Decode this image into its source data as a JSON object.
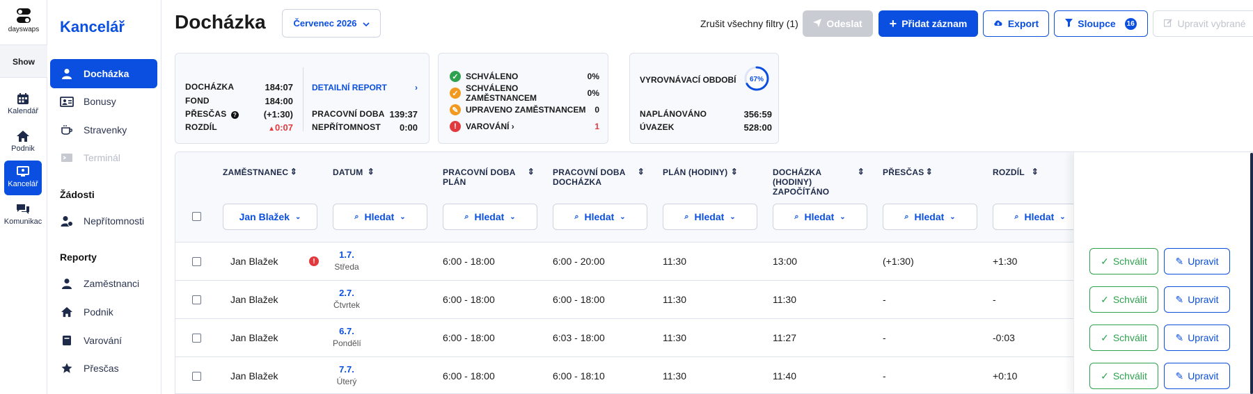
{
  "brand": {
    "name": "dayswaps"
  },
  "rail": {
    "show_label": "Show",
    "items": [
      {
        "label": "Kalendář",
        "icon": "calendar-icon"
      },
      {
        "label": "Podnik",
        "icon": "home-icon"
      },
      {
        "label": "Kancelář",
        "icon": "office-icon",
        "active": true
      },
      {
        "label": "Komunikac",
        "icon": "chat-icon"
      }
    ]
  },
  "sidebar": {
    "title": "Kancelář",
    "items": [
      {
        "label": "Docházka",
        "icon": "user-icon",
        "active": true
      },
      {
        "label": "Bonusy",
        "icon": "bonus-icon"
      },
      {
        "label": "Stravenky",
        "icon": "coffee-icon"
      },
      {
        "label": "Terminál",
        "icon": "terminal-icon",
        "disabled": true
      }
    ],
    "section_requests": "Žádosti",
    "request_items": [
      {
        "label": "Nepřítomnosti",
        "icon": "user-absence-icon"
      }
    ],
    "section_reports": "Reporty",
    "report_items": [
      {
        "label": "Zaměstnanci",
        "icon": "user-icon"
      },
      {
        "label": "Podnik",
        "icon": "home-icon"
      },
      {
        "label": "Varování",
        "icon": "book-icon"
      },
      {
        "label": "Přesčas",
        "icon": "star-icon"
      }
    ]
  },
  "header": {
    "title": "Docházka",
    "month": "Červenec 2026",
    "clear_filters": "Zrušit všechny filtry (1)",
    "send": "Odeslat",
    "add": "Přidat záznam",
    "export": "Export",
    "columns": "Sloupce",
    "columns_count": "16",
    "edit_selected": "Upravit vybrané"
  },
  "summary": {
    "attendance_label": "DOCHÁZKA",
    "attendance": "184:07",
    "fund_label": "FOND",
    "fund": "184:00",
    "overtime_label": "PŘESČAS",
    "overtime": "(+1:30)",
    "diff_label": "ROZDÍL",
    "diff": "0:07",
    "report_link": "DETAILNÍ REPORT",
    "work_time_label": "PRACOVNÍ DOBA",
    "work_time": "139:37",
    "absence_label": "NEPŘÍTOMNOST",
    "absence": "0:00"
  },
  "status": {
    "approved_label": "SCHVÁLENO",
    "approved": "0%",
    "approved_emp_label": "SCHVÁLENO ZAMĚSTNANCEM",
    "approved_emp": "0%",
    "edited_emp_label": "UPRAVENO ZAMĚSTNANCEM",
    "edited_emp": "0",
    "warnings_label": "VAROVÁNÍ",
    "warnings": "1",
    "colors": {
      "approved": "#2ea24f",
      "approved_emp": "#f29a1f",
      "warning": "#e0393e"
    }
  },
  "balance": {
    "period_label": "VYROVNÁVACÍ OBDOBÍ",
    "period_progress": "67%",
    "period_fraction": 0.67,
    "planned_label": "NAPLÁNOVÁNO",
    "planned": "356:59",
    "contract_label": "ÚVAZEK",
    "contract": "528:00"
  },
  "table": {
    "columns": [
      "ZAMĚSTNANEC",
      "DATUM",
      "PRACOVNÍ DOBA PLÁN",
      "PRACOVNÍ DOBA DOCHÁZKA",
      "PLÁN (HODINY)",
      "DOCHÁZKA (HODINY) ZAPOČÍTÁNO",
      "PŘESČAS",
      "ROZDÍL"
    ],
    "employee_filter": "Jan Blažek",
    "search_filter": "Hledat",
    "approve_label": "Schválit",
    "edit_label": "Upravit",
    "rows": [
      {
        "name": "Jan Blažek",
        "warning": true,
        "date": "1.7.",
        "weekday": "Středa",
        "plan": "6:00 - 18:00",
        "actual": "6:00 - 20:00",
        "plan_hours": "11:30",
        "counted": "13:00",
        "overtime": "(+1:30)",
        "diff": "+1:30"
      },
      {
        "name": "Jan Blažek",
        "warning": false,
        "date": "2.7.",
        "weekday": "Čtvrtek",
        "plan": "6:00 - 18:00",
        "actual": "6:00 - 18:00",
        "plan_hours": "11:30",
        "counted": "11:30",
        "overtime": "-",
        "diff": "-"
      },
      {
        "name": "Jan Blažek",
        "warning": false,
        "date": "6.7.",
        "weekday": "Pondělí",
        "plan": "6:00 - 18:00",
        "actual": "6:03 - 18:00",
        "plan_hours": "11:30",
        "counted": "11:27",
        "overtime": "-",
        "diff": "-0:03"
      },
      {
        "name": "Jan Blažek",
        "warning": false,
        "date": "7.7.",
        "weekday": "Úterý",
        "plan": "6:00 - 18:00",
        "actual": "6:00 - 18:10",
        "plan_hours": "11:30",
        "counted": "11:40",
        "overtime": "-",
        "diff": "+0:10"
      }
    ]
  }
}
